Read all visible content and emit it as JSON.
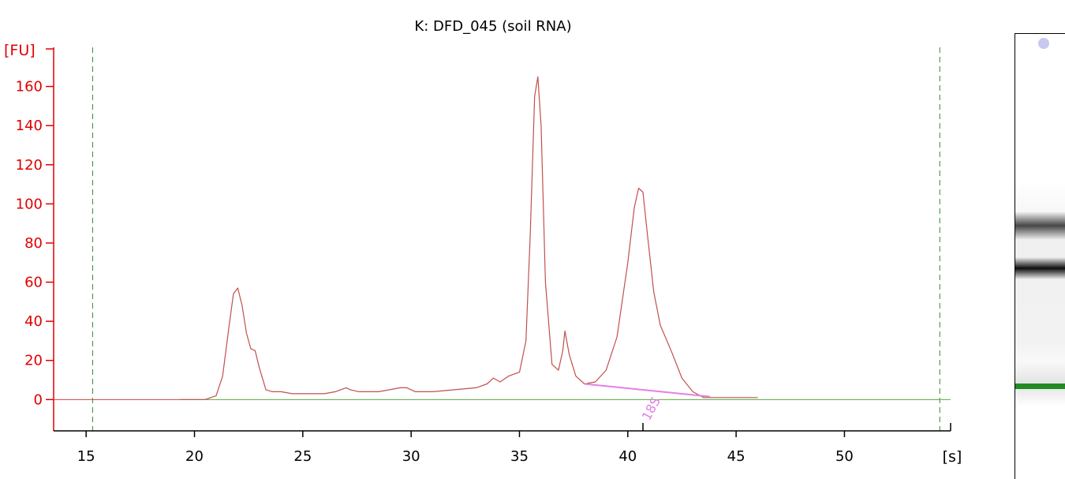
{
  "chart_data": {
    "type": "line",
    "title": "K: DFD_045 (soil RNA)",
    "ylabel": "[FU]",
    "xlabel": "[s]",
    "xlim": [
      13.5,
      54.9
    ],
    "ylim": [
      -16,
      180
    ],
    "x_ticks": [
      15,
      20,
      25,
      30,
      35,
      40,
      45,
      50
    ],
    "y_ticks": [
      0,
      20,
      40,
      60,
      80,
      100,
      120,
      140,
      160
    ],
    "grid": false,
    "vlines_dashed": [
      15.3,
      54.4
    ],
    "series": [
      {
        "color": "#c0504d",
        "x": [
          19.3,
          19.5,
          20.5,
          21.0,
          21.3,
          21.6,
          21.8,
          22.0,
          22.2,
          22.4,
          22.6,
          22.8,
          23.0,
          23.3,
          23.6,
          24.0,
          24.5,
          25.0,
          25.5,
          26.0,
          26.5,
          27.0,
          27.2,
          27.6,
          28.0,
          28.5,
          29.0,
          29.5,
          29.8,
          30.2,
          30.5,
          31.0,
          32.0,
          33.0,
          33.5,
          33.8,
          34.1,
          34.5,
          35.0,
          35.3,
          35.5,
          35.7,
          35.85,
          36.0,
          36.2,
          36.5,
          36.8,
          37.0,
          37.1,
          37.3,
          37.6,
          38.0,
          38.5,
          39.0,
          39.5,
          40.0,
          40.3,
          40.5,
          40.7,
          40.9,
          41.2,
          41.5,
          42.0,
          42.5,
          43.0,
          43.5,
          44.0,
          45.0,
          46.0
        ],
        "y": [
          0,
          0,
          0,
          2,
          12,
          38,
          54,
          57,
          48,
          34,
          26,
          25,
          16,
          5,
          4,
          4,
          3,
          3,
          3,
          3,
          4,
          6,
          5,
          4,
          4,
          4,
          5,
          6,
          6,
          4,
          4,
          4,
          5,
          6,
          8,
          11,
          9,
          12,
          14,
          30,
          85,
          155,
          165,
          140,
          60,
          18,
          15,
          25,
          35,
          23,
          12,
          8,
          9,
          15,
          32,
          70,
          98,
          108,
          106,
          85,
          55,
          38,
          25,
          11,
          4,
          1,
          1,
          1,
          1
        ]
      }
    ],
    "baseline_color": "#5aab3d",
    "peak_marker": {
      "label": "18S",
      "x": 40.7,
      "x_start": 38.0,
      "y_start": 8,
      "x_end": 43.8,
      "y_end": 1.5,
      "color": "#e67ee6"
    },
    "colors": {
      "axis_y": "#e00000",
      "axis_x": "#000000",
      "vline": "#2e8b2e",
      "trace": "#c0504d"
    },
    "gel_bands": [
      {
        "position": 0.43,
        "intensity": 0.75,
        "spread": 0.032
      },
      {
        "position": 0.525,
        "intensity": 1.0,
        "spread": 0.025
      },
      {
        "position": 0.785,
        "intensity": 0.12,
        "spread": 0.05
      },
      {
        "position": 0.79,
        "intensity": 1.0,
        "spread": 0.006,
        "color": "#228b22"
      }
    ]
  }
}
